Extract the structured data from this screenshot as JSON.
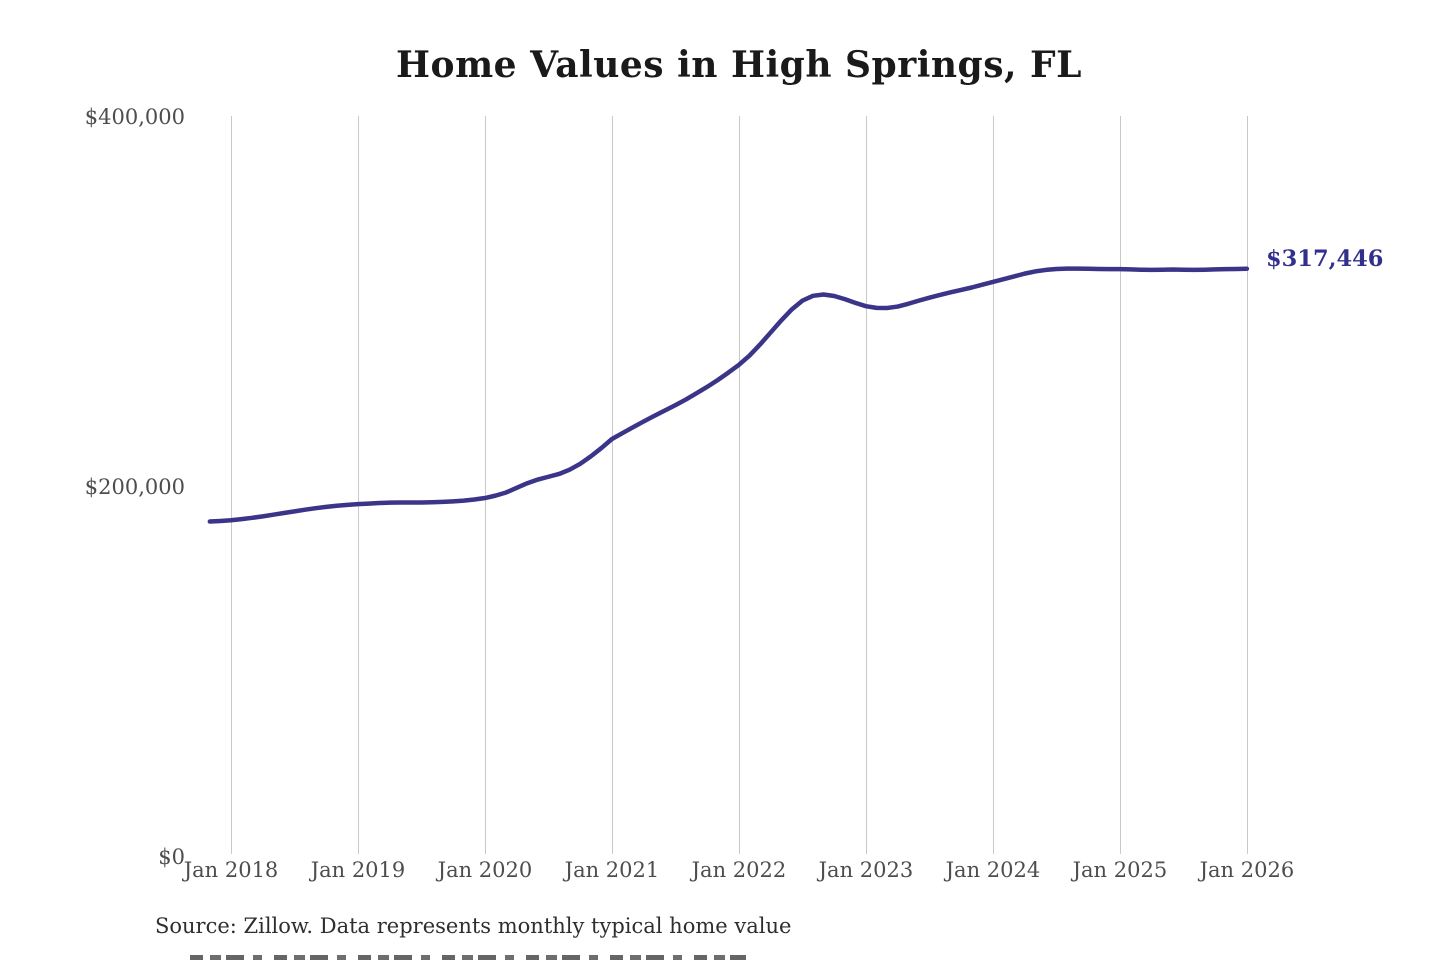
{
  "title": "Home Values in High Springs, FL",
  "annotation": {
    "end_value_label": "$317,446"
  },
  "source_note": "Source: Zillow. Data represents monthly typical home value",
  "colors": {
    "line": "#3b3589",
    "annotation": "#32308c",
    "gridline": "#c9c9c9",
    "title": "#1a1a1a",
    "axis_label": "#4d4d4d",
    "source": "#2e2e2e",
    "background": "#ffffff"
  },
  "chart_data": {
    "type": "line",
    "title": "Home Values in High Springs, FL",
    "ylabel": "",
    "xlabel": "",
    "ylim": [
      0,
      400000
    ],
    "y_ticks": [
      0,
      200000,
      400000
    ],
    "y_tick_labels": [
      "$0",
      "$200,000",
      "$400,000"
    ],
    "x_tick_labels": [
      "Jan 2018",
      "Jan 2019",
      "Jan 2020",
      "Jan 2021",
      "Jan 2022",
      "Jan 2023",
      "Jan 2024",
      "Jan 2025",
      "Jan 2026"
    ],
    "grid": "vertical-only",
    "legend": "none",
    "frequency": "monthly",
    "x_start": "Nov 2017",
    "x_end": "Jan 2026",
    "end_value": 317446,
    "end_label": "$317,446",
    "series": [
      {
        "name": "Typical home value",
        "values": [
          180800,
          181100,
          181500,
          182100,
          182800,
          183600,
          184500,
          185400,
          186300,
          187200,
          188000,
          188700,
          189300,
          189800,
          190200,
          190500,
          190800,
          191000,
          191100,
          191100,
          191100,
          191200,
          191400,
          191700,
          192100,
          192700,
          193500,
          194800,
          196500,
          199000,
          201500,
          203500,
          205000,
          206500,
          208800,
          212000,
          216000,
          220500,
          225400,
          228600,
          231800,
          234900,
          237900,
          240800,
          243700,
          246800,
          250200,
          253600,
          257300,
          261300,
          265500,
          270500,
          276500,
          283000,
          289500,
          295500,
          300200,
          302800,
          303500,
          302700,
          301000,
          299000,
          297200,
          296300,
          296200,
          297000,
          298500,
          300200,
          301800,
          303300,
          304700,
          306000,
          307300,
          308800,
          310300,
          311800,
          313300,
          314800,
          316000,
          316800,
          317300,
          317500,
          317500,
          317400,
          317300,
          317200,
          317200,
          317100,
          316900,
          316800,
          316900,
          317000,
          316900,
          316800,
          316900,
          317100,
          317200,
          317300,
          317446
        ]
      }
    ]
  }
}
